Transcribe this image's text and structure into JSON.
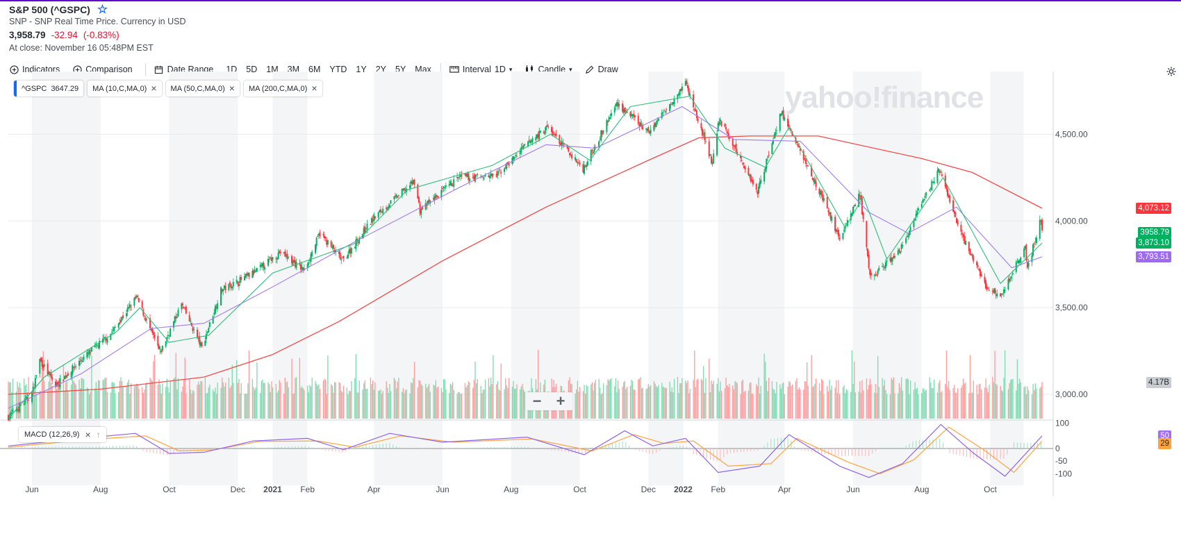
{
  "header": {
    "title": "S&P 500 (^GSPC)",
    "subtitle": "SNP - SNP Real Time Price. Currency in USD",
    "price": "3,958.79",
    "change": "-32.94",
    "change_pct": "(-0.83%)",
    "close_time": "At close: November 16 05:48PM EST"
  },
  "toolbar": {
    "indicators": "Indicators",
    "comparison": "Comparison",
    "date_range": "Date Range",
    "ranges": [
      "1D",
      "5D",
      "1M",
      "3M",
      "6M",
      "YTD",
      "1Y",
      "2Y",
      "5Y",
      "Max"
    ],
    "interval_label": "Interval",
    "interval_value": "1D",
    "chart_type": "Candle",
    "draw": "Draw"
  },
  "legend": {
    "symbol": "^GSPC",
    "symbol_value": "3647.29",
    "ma10": "MA (10,C,MA,0)",
    "ma50": "MA (50,C,MA,0)",
    "ma200": "MA (200,C,MA,0)"
  },
  "macd_label": "MACD (12,26,9)",
  "watermark": "yahoo!finance",
  "price_labels": {
    "ma200": "4,073.12",
    "last": "3958.79",
    "ma10": "3,873.10",
    "ma50": "3,793.51",
    "volume": "4.17B",
    "macd_a": "50",
    "macd_b": "29"
  },
  "colors": {
    "up": "#00b061",
    "down": "#ff333a",
    "ma10": "#2dbf7a",
    "ma50": "#a07af0",
    "ma200": "#f24a4a",
    "macd_line": "#8f63e8",
    "signal_line": "#ffa33f",
    "label_red": "#ff333a",
    "label_green": "#00b061",
    "label_purple": "#9e6bf0"
  },
  "chart_data": {
    "type": "candlestick",
    "title": "S&P 500 (^GSPC)",
    "y_axis": {
      "ticks": [
        "4,500.00",
        "4,000.00",
        "3,500.00",
        "3,000.00"
      ],
      "tick_values": [
        4500,
        4000,
        3500,
        3000
      ],
      "range": [
        2860,
        4830
      ]
    },
    "macd_axis": {
      "ticks": [
        "100",
        "0",
        "-50",
        "-100"
      ],
      "tick_values": [
        100,
        0,
        -50,
        -100
      ],
      "range": [
        -135,
        110
      ]
    },
    "x_axis": {
      "labels": [
        "Jun",
        "Aug",
        "Oct",
        "Dec",
        "2021",
        "Feb",
        "Apr",
        "Jun",
        "Aug",
        "Oct",
        "Dec",
        "2022",
        "Feb",
        "Apr",
        "Jun",
        "Aug",
        "Oct"
      ],
      "label_dates": [
        "2020-06",
        "2020-08",
        "2020-10",
        "2020-12",
        "2021-01",
        "2021-02",
        "2021-04",
        "2021-06",
        "2021-08",
        "2021-10",
        "2021-12",
        "2022-01",
        "2022-02",
        "2022-04",
        "2022-06",
        "2022-08",
        "2022-10"
      ],
      "range": [
        "2020-05-11",
        "2022-11-16"
      ]
    },
    "close_series": {
      "name": "^GSPC",
      "points": [
        [
          "2020-05-11",
          2870
        ],
        [
          "2020-06-01",
          3000
        ],
        [
          "2020-06-08",
          3200
        ],
        [
          "2020-06-22",
          3050
        ],
        [
          "2020-07-15",
          3200
        ],
        [
          "2020-08-10",
          3350
        ],
        [
          "2020-09-02",
          3560
        ],
        [
          "2020-09-23",
          3240
        ],
        [
          "2020-10-12",
          3520
        ],
        [
          "2020-10-30",
          3270
        ],
        [
          "2020-11-16",
          3600
        ],
        [
          "2020-12-15",
          3700
        ],
        [
          "2021-01-08",
          3820
        ],
        [
          "2021-01-29",
          3715
        ],
        [
          "2021-02-12",
          3930
        ],
        [
          "2021-03-04",
          3770
        ],
        [
          "2021-04-01",
          4020
        ],
        [
          "2021-05-07",
          4230
        ],
        [
          "2021-05-12",
          4060
        ],
        [
          "2021-06-15",
          4250
        ],
        [
          "2021-07-19",
          4260
        ],
        [
          "2021-08-16",
          4450
        ],
        [
          "2021-09-02",
          4540
        ],
        [
          "2021-10-04",
          4300
        ],
        [
          "2021-11-03",
          4680
        ],
        [
          "2021-12-01",
          4510
        ],
        [
          "2022-01-03",
          4800
        ],
        [
          "2022-01-27",
          4330
        ],
        [
          "2022-02-02",
          4590
        ],
        [
          "2022-03-08",
          4170
        ],
        [
          "2022-03-29",
          4630
        ],
        [
          "2022-05-03",
          4160
        ],
        [
          "2022-05-20",
          3900
        ],
        [
          "2022-06-07",
          4160
        ],
        [
          "2022-06-16",
          3670
        ],
        [
          "2022-07-12",
          3820
        ],
        [
          "2022-08-16",
          4300
        ],
        [
          "2022-09-06",
          3910
        ],
        [
          "2022-09-30",
          3590
        ],
        [
          "2022-10-12",
          3580
        ],
        [
          "2022-11-01",
          3860
        ],
        [
          "2022-11-03",
          3720
        ],
        [
          "2022-11-14",
          4000
        ],
        [
          "2022-11-16",
          3958.79
        ]
      ]
    },
    "ma200_series": {
      "name": "MA (200,C,MA,0)",
      "points": [
        [
          "2020-05-11",
          3000
        ],
        [
          "2020-08-01",
          3030
        ],
        [
          "2020-11-01",
          3100
        ],
        [
          "2021-01-01",
          3230
        ],
        [
          "2021-03-01",
          3420
        ],
        [
          "2021-06-01",
          3770
        ],
        [
          "2021-09-01",
          4080
        ],
        [
          "2021-12-01",
          4350
        ],
        [
          "2022-01-15",
          4480
        ],
        [
          "2022-03-01",
          4490
        ],
        [
          "2022-05-01",
          4490
        ],
        [
          "2022-08-01",
          4360
        ],
        [
          "2022-09-15",
          4280
        ],
        [
          "2022-11-16",
          4073.12
        ]
      ]
    },
    "ma50_series": {
      "name": "MA (50,C,MA,0)",
      "points": [
        [
          "2020-05-11",
          2920
        ],
        [
          "2020-07-15",
          3120
        ],
        [
          "2020-09-15",
          3380
        ],
        [
          "2020-11-01",
          3410
        ],
        [
          "2021-01-01",
          3620
        ],
        [
          "2021-03-15",
          3880
        ],
        [
          "2021-06-15",
          4190
        ],
        [
          "2021-09-01",
          4440
        ],
        [
          "2021-10-15",
          4420
        ],
        [
          "2021-12-31",
          4660
        ],
        [
          "2022-02-15",
          4470
        ],
        [
          "2022-04-15",
          4460
        ],
        [
          "2022-06-15",
          4050
        ],
        [
          "2022-07-20",
          3930
        ],
        [
          "2022-09-01",
          4080
        ],
        [
          "2022-10-20",
          3730
        ],
        [
          "2022-11-16",
          3793.51
        ]
      ]
    },
    "ma10_series": {
      "name": "MA (10,C,MA,0)",
      "points": [
        [
          "2020-05-11",
          2860
        ],
        [
          "2020-06-12",
          3100
        ],
        [
          "2020-08-15",
          3360
        ],
        [
          "2020-09-05",
          3500
        ],
        [
          "2020-10-01",
          3300
        ],
        [
          "2020-11-05",
          3340
        ],
        [
          "2021-01-01",
          3700
        ],
        [
          "2021-03-15",
          3870
        ],
        [
          "2021-05-01",
          4180
        ],
        [
          "2021-07-15",
          4320
        ],
        [
          "2021-09-05",
          4500
        ],
        [
          "2021-10-10",
          4350
        ],
        [
          "2021-11-15",
          4660
        ],
        [
          "2022-01-07",
          4720
        ],
        [
          "2022-02-07",
          4420
        ],
        [
          "2022-03-15",
          4310
        ],
        [
          "2022-04-05",
          4540
        ],
        [
          "2022-05-25",
          3960
        ],
        [
          "2022-06-10",
          4140
        ],
        [
          "2022-07-01",
          3780
        ],
        [
          "2022-08-20",
          4250
        ],
        [
          "2022-10-10",
          3640
        ],
        [
          "2022-11-16",
          3873.1
        ]
      ]
    },
    "macd_series": {
      "name": "MACD",
      "points": [
        [
          "2020-05-11",
          10
        ],
        [
          "2020-07-15",
          40
        ],
        [
          "2020-09-01",
          60
        ],
        [
          "2020-10-01",
          -20
        ],
        [
          "2020-11-01",
          -15
        ],
        [
          "2020-12-15",
          30
        ],
        [
          "2021-02-01",
          40
        ],
        [
          "2021-03-05",
          -5
        ],
        [
          "2021-04-15",
          60
        ],
        [
          "2021-06-01",
          25
        ],
        [
          "2021-08-15",
          45
        ],
        [
          "2021-10-05",
          -25
        ],
        [
          "2021-11-10",
          70
        ],
        [
          "2021-12-05",
          10
        ],
        [
          "2022-01-03",
          40
        ],
        [
          "2022-02-01",
          -95
        ],
        [
          "2022-03-10",
          -70
        ],
        [
          "2022-04-05",
          55
        ],
        [
          "2022-05-20",
          -70
        ],
        [
          "2022-06-15",
          -115
        ],
        [
          "2022-07-15",
          -60
        ],
        [
          "2022-08-18",
          95
        ],
        [
          "2022-09-15",
          -15
        ],
        [
          "2022-10-14",
          -110
        ],
        [
          "2022-11-16",
          50
        ]
      ]
    },
    "signal_series": {
      "name": "Signal",
      "points": [
        [
          "2020-05-11",
          5
        ],
        [
          "2020-07-20",
          35
        ],
        [
          "2020-09-10",
          50
        ],
        [
          "2020-10-10",
          -10
        ],
        [
          "2020-11-10",
          -5
        ],
        [
          "2020-12-20",
          28
        ],
        [
          "2021-02-10",
          30
        ],
        [
          "2021-03-15",
          5
        ],
        [
          "2021-04-25",
          50
        ],
        [
          "2021-06-10",
          25
        ],
        [
          "2021-08-20",
          38
        ],
        [
          "2021-10-12",
          -10
        ],
        [
          "2021-11-18",
          55
        ],
        [
          "2021-12-15",
          20
        ],
        [
          "2022-01-10",
          30
        ],
        [
          "2022-02-10",
          -70
        ],
        [
          "2022-03-20",
          -60
        ],
        [
          "2022-04-12",
          40
        ],
        [
          "2022-05-28",
          -55
        ],
        [
          "2022-06-25",
          -100
        ],
        [
          "2022-07-25",
          -45
        ],
        [
          "2022-08-25",
          85
        ],
        [
          "2022-09-25",
          -5
        ],
        [
          "2022-10-22",
          -95
        ],
        [
          "2022-11-16",
          29
        ]
      ]
    },
    "volume_last": "4.17B"
  }
}
